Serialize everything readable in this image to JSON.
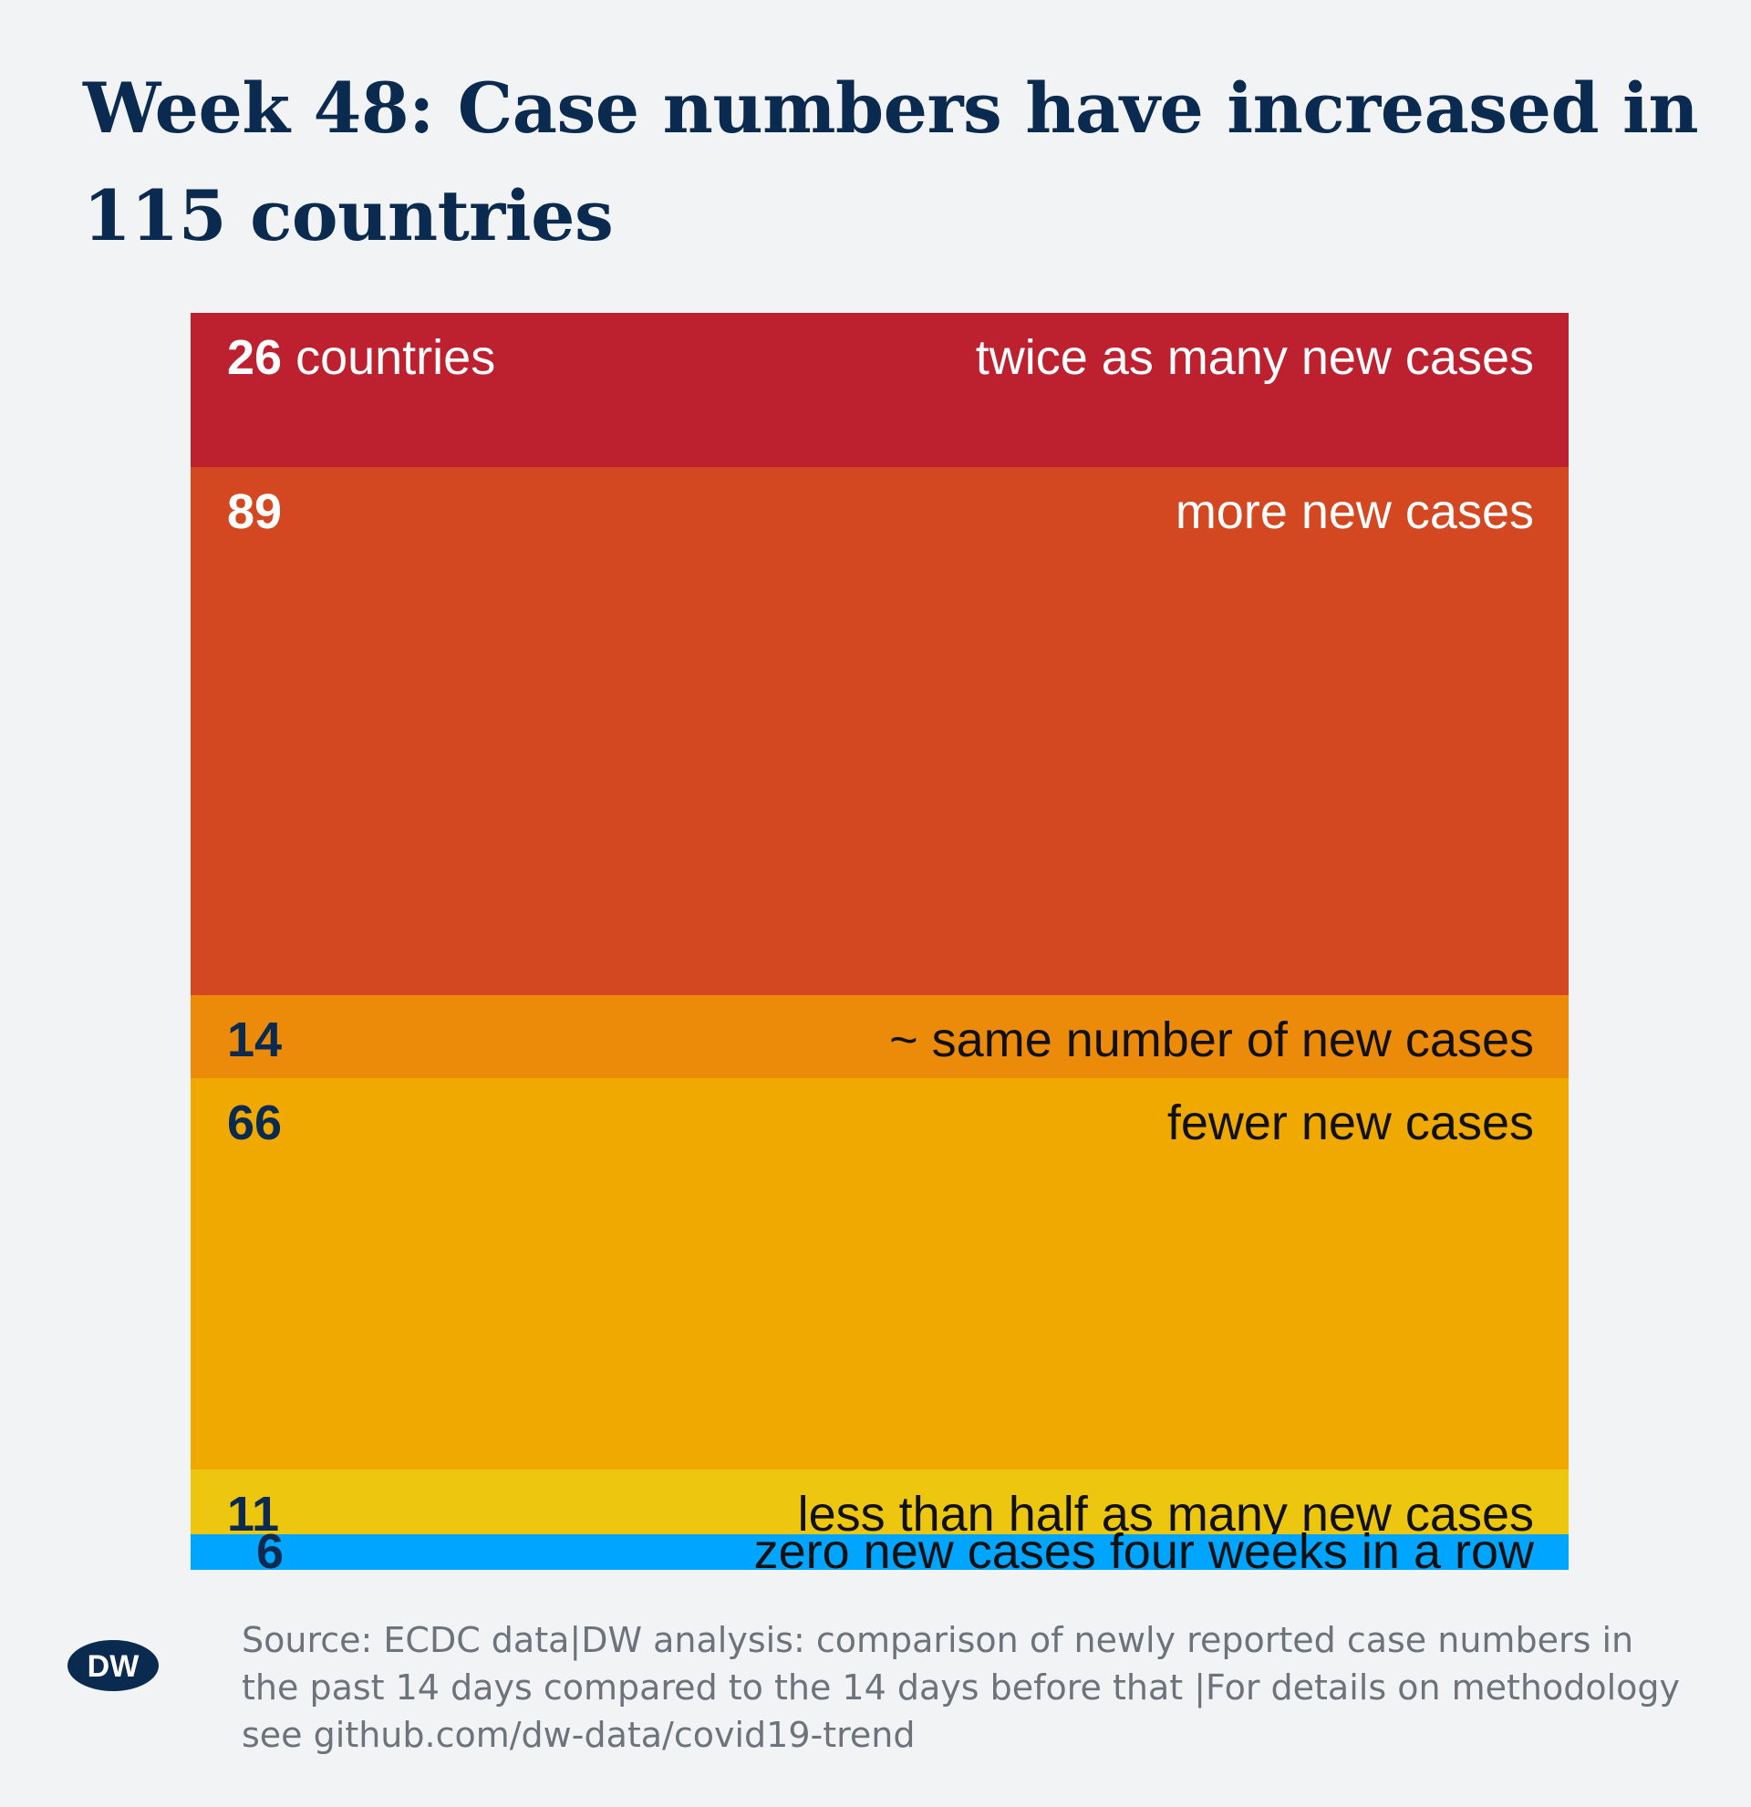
{
  "title": "Week 48: Case numbers have increased in 115 countries",
  "source": "Source: ECDC data|DW analysis: comparison of newly reported case numbers in the past 14 days compared to the 14 days before that |For details on methodology see github.com/dw-data/covid19-trend",
  "logo": {
    "text": "DW",
    "icon": "dw-logo"
  },
  "colors": {
    "background": "#f1f3f5",
    "title": "#0b2a4f",
    "source": "#6d737a"
  },
  "chart_data": {
    "type": "bar",
    "orientation": "stacked-vertical",
    "categories": [
      "twice as many new cases",
      "more new cases",
      "~ same number of new cases",
      "fewer new cases",
      "less than half as many new cases",
      "zero new cases four weeks in a row"
    ],
    "values": [
      26,
      89,
      14,
      66,
      11,
      6
    ],
    "count_unit": "countries",
    "colors": [
      "#bd202e",
      "#d34820",
      "#ec8a0a",
      "#efa900",
      "#edc60f",
      "#00a5ff"
    ],
    "text_colors": [
      "#ffffff",
      "#ffffff",
      "#0b2a4f",
      "#0b2a4f",
      "#0b2a4f",
      "#0b2a4f"
    ],
    "label_colors": [
      "#ffffff",
      "#ffffff",
      "#111111",
      "#111111",
      "#111111",
      "#111111"
    ],
    "title": "Week 48: Case numbers have increased in 115 countries",
    "xlabel": "",
    "ylabel": ""
  }
}
